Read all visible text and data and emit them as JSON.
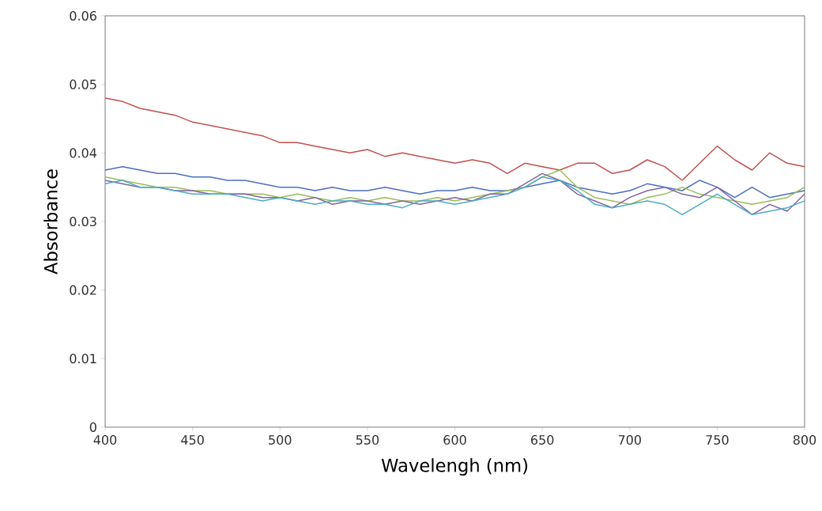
{
  "chart_data": {
    "type": "line",
    "xlabel": "Wavelengh (nm)",
    "ylabel": "Absorbance",
    "x": [
      400,
      410,
      420,
      430,
      440,
      450,
      460,
      470,
      480,
      490,
      500,
      510,
      520,
      530,
      540,
      550,
      560,
      570,
      580,
      590,
      600,
      610,
      620,
      630,
      640,
      650,
      660,
      670,
      680,
      690,
      700,
      710,
      720,
      730,
      740,
      750,
      760,
      770,
      780,
      790,
      800
    ],
    "series": [
      {
        "color": "#c0504d",
        "values": [
          0.048,
          0.0475,
          0.0465,
          0.046,
          0.0455,
          0.0445,
          0.044,
          0.0435,
          0.043,
          0.0425,
          0.0415,
          0.0415,
          0.041,
          0.0405,
          0.04,
          0.0405,
          0.0395,
          0.04,
          0.0395,
          0.039,
          0.0385,
          0.039,
          0.0385,
          0.037,
          0.0385,
          0.038,
          0.0375,
          0.0385,
          0.0385,
          0.037,
          0.0375,
          0.039,
          0.038,
          0.036,
          0.0385,
          0.041,
          0.039,
          0.0375,
          0.04,
          0.0385,
          0.038
        ]
      },
      {
        "color": "#4a6fc4",
        "values": [
          0.0375,
          0.038,
          0.0375,
          0.037,
          0.037,
          0.0365,
          0.0365,
          0.036,
          0.036,
          0.0355,
          0.035,
          0.035,
          0.0345,
          0.035,
          0.0345,
          0.0345,
          0.035,
          0.0345,
          0.034,
          0.0345,
          0.0345,
          0.035,
          0.0345,
          0.0345,
          0.035,
          0.0355,
          0.036,
          0.035,
          0.0345,
          0.034,
          0.0345,
          0.0355,
          0.035,
          0.0345,
          0.036,
          0.035,
          0.0335,
          0.035,
          0.0335,
          0.034,
          0.0345
        ]
      },
      {
        "color": "#9bbb59",
        "values": [
          0.0365,
          0.036,
          0.0355,
          0.035,
          0.035,
          0.0345,
          0.0345,
          0.034,
          0.034,
          0.034,
          0.0335,
          0.034,
          0.0335,
          0.033,
          0.0335,
          0.033,
          0.0335,
          0.033,
          0.033,
          0.0335,
          0.033,
          0.0335,
          0.034,
          0.0345,
          0.035,
          0.0365,
          0.0375,
          0.035,
          0.0335,
          0.033,
          0.0325,
          0.0335,
          0.034,
          0.035,
          0.034,
          0.0335,
          0.033,
          0.0325,
          0.033,
          0.0335,
          0.035
        ]
      },
      {
        "color": "#8064a2",
        "values": [
          0.036,
          0.0355,
          0.035,
          0.035,
          0.0345,
          0.0345,
          0.034,
          0.034,
          0.034,
          0.0335,
          0.0335,
          0.033,
          0.0335,
          0.0325,
          0.033,
          0.033,
          0.0325,
          0.033,
          0.0325,
          0.033,
          0.0335,
          0.033,
          0.034,
          0.034,
          0.0355,
          0.037,
          0.036,
          0.034,
          0.033,
          0.032,
          0.0335,
          0.0345,
          0.035,
          0.034,
          0.0335,
          0.035,
          0.033,
          0.031,
          0.0325,
          0.0315,
          0.034
        ]
      },
      {
        "color": "#4bacc6",
        "values": [
          0.0355,
          0.036,
          0.035,
          0.035,
          0.0345,
          0.034,
          0.034,
          0.034,
          0.0335,
          0.033,
          0.0335,
          0.033,
          0.0325,
          0.033,
          0.033,
          0.0325,
          0.0325,
          0.032,
          0.033,
          0.033,
          0.0325,
          0.033,
          0.0335,
          0.034,
          0.035,
          0.0365,
          0.036,
          0.0345,
          0.0325,
          0.032,
          0.0325,
          0.033,
          0.0325,
          0.031,
          0.0325,
          0.034,
          0.0325,
          0.031,
          0.0315,
          0.032,
          0.033
        ]
      }
    ],
    "xlim": [
      400,
      800
    ],
    "ylim": [
      0,
      0.06
    ],
    "xticks": [
      400,
      450,
      500,
      550,
      600,
      650,
      700,
      750,
      800
    ],
    "yticks": [
      0,
      0.01,
      0.02,
      0.03,
      0.04,
      0.05,
      0.06
    ],
    "grid": false,
    "legend": false,
    "marker": "none",
    "line_style": "solid"
  }
}
